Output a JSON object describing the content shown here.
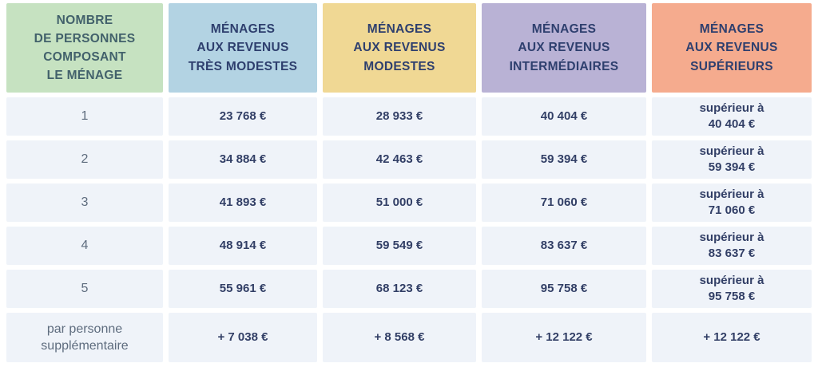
{
  "colors": {
    "header_green": "#c6e2c1",
    "header_blue": "#b3d3e3",
    "header_yellow": "#f0d894",
    "header_purple": "#b9b2d5",
    "header_salmon": "#f5ab8e",
    "body_cell_background": "#eff3f9",
    "value_text": "#323f66",
    "label_text": "#5e6c7e"
  },
  "table": {
    "columns": [
      {
        "id": "household-size",
        "label": "NOMBRE\nDE PERSONNES\nCOMPOSANT\nLE MÉNAGE"
      },
      {
        "id": "tres-modestes",
        "label": "MÉNAGES\nAUX REVENUS\nTRÈS MODESTES"
      },
      {
        "id": "modestes",
        "label": "MÉNAGES\nAUX REVENUS\nMODESTES"
      },
      {
        "id": "intermediaires",
        "label": "MÉNAGES\nAUX REVENUS\nINTERMÉDIAIRES"
      },
      {
        "id": "superieurs",
        "label": "MÉNAGES\nAUX REVENUS\nSUPÉRIEURS"
      }
    ],
    "rows": [
      {
        "cells": [
          "1",
          "23 768 €",
          "28 933 €",
          "40 404 €",
          "supérieur à\n40 404 €"
        ]
      },
      {
        "cells": [
          "2",
          "34 884 €",
          "42 463 €",
          "59 394 €",
          "supérieur à\n59 394 €"
        ]
      },
      {
        "cells": [
          "3",
          "41 893 €",
          "51 000 €",
          "71 060 €",
          "supérieur à\n71 060 €"
        ]
      },
      {
        "cells": [
          "4",
          "48 914 €",
          "59 549 €",
          "83 637 €",
          "supérieur à\n83 637 €"
        ]
      },
      {
        "cells": [
          "5",
          "55 961 €",
          "68 123 €",
          "95 758 €",
          "supérieur à\n95 758 €"
        ]
      },
      {
        "cells": [
          "par personne\nsupplémentaire",
          "+ 7 038 €",
          "+ 8 568 €",
          "+ 12 122 €",
          "+ 12 122 €"
        ]
      }
    ]
  }
}
